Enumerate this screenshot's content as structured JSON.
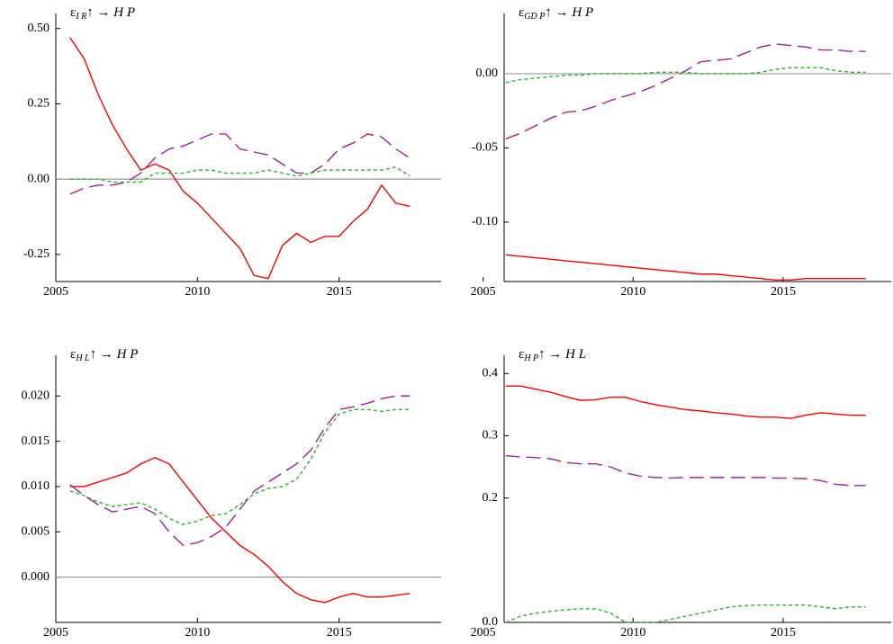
{
  "chart_data": [
    {
      "type": "line",
      "title": {
        "symbol": "ε",
        "subscript": "I R",
        "text": "↑ → H P"
      },
      "x": [
        2005.5,
        2006,
        2006.5,
        2007,
        2007.5,
        2008,
        2008.5,
        2009,
        2009.5,
        2010,
        2010.5,
        2011,
        2011.5,
        2012,
        2012.5,
        2013,
        2013.5,
        2014,
        2014.5,
        2015,
        2015.5,
        2016,
        2016.5,
        2017,
        2017.5
      ],
      "xlim": [
        2005,
        2018.6
      ],
      "xticks": [
        2005,
        2010,
        2015
      ],
      "ylim": [
        -0.34,
        0.52
      ],
      "yticks": [
        {
          "value": 0.5,
          "label": "0.50"
        },
        0.25,
        {
          "value": 0,
          "label": "0.00"
        },
        -0.25
      ],
      "zero_line": true,
      "series": [
        {
          "color": "#ff0000",
          "line_style": "solid",
          "values": [
            0.47,
            0.4,
            0.28,
            0.18,
            0.1,
            0.03,
            0.05,
            0.03,
            -0.04,
            -0.08,
            -0.13,
            -0.18,
            -0.23,
            -0.32,
            -0.33,
            -0.22,
            -0.18,
            -0.21,
            -0.19,
            -0.19,
            -0.14,
            -0.1,
            -0.02,
            -0.08,
            -0.09
          ]
        },
        {
          "color": "#a020a0",
          "line_style": "long-dash",
          "values": [
            -0.05,
            -0.03,
            -0.02,
            -0.02,
            -0.01,
            0.02,
            0.07,
            0.1,
            0.11,
            0.13,
            0.15,
            0.15,
            0.1,
            0.09,
            0.08,
            0.05,
            0.02,
            0.02,
            0.05,
            0.1,
            0.12,
            0.15,
            0.14,
            0.1,
            0.07
          ]
        },
        {
          "color": "#22bb22",
          "line_style": "dash",
          "values": [
            0,
            0,
            0,
            -0.01,
            -0.01,
            -0.01,
            0.02,
            0.02,
            0.02,
            0.03,
            0.03,
            0.02,
            0.02,
            0.02,
            0.03,
            0.02,
            0.01,
            0.02,
            0.03,
            0.03,
            0.03,
            0.03,
            0.03,
            0.04,
            0.01
          ]
        }
      ]
    },
    {
      "type": "line",
      "title": {
        "symbol": "ε",
        "subscript": "GD P",
        "text": "↑ → H P"
      },
      "x": [
        2005.75,
        2006.25,
        2006.75,
        2007.25,
        2007.75,
        2008.25,
        2008.75,
        2009.25,
        2009.75,
        2010.25,
        2010.75,
        2011.25,
        2011.75,
        2012.25,
        2012.75,
        2013.25,
        2013.75,
        2014.25,
        2014.75,
        2015.25,
        2015.75,
        2016.25,
        2016.75,
        2017.25,
        2017.75
      ],
      "xlim": [
        2005.7,
        2018.6
      ],
      "xticks": [
        2005,
        2010,
        2015
      ],
      "ylim": [
        -0.14,
        0.0345
      ],
      "yticks": [
        {
          "value": 0,
          "label": "0.00"
        },
        {
          "value": -0.05,
          "label": "-0.05"
        },
        {
          "value": -0.1,
          "label": "-0.10"
        }
      ],
      "zero_line": true,
      "series": [
        {
          "color": "#ff0000",
          "line_style": "solid",
          "values": [
            -0.122,
            -0.123,
            -0.124,
            -0.125,
            -0.126,
            -0.127,
            -0.128,
            -0.129,
            -0.13,
            -0.131,
            -0.132,
            -0.133,
            -0.134,
            -0.135,
            -0.135,
            -0.136,
            -0.137,
            -0.138,
            -0.139,
            -0.139,
            -0.138,
            -0.138,
            -0.138,
            -0.138,
            -0.138
          ]
        },
        {
          "color": "#a020a0",
          "line_style": "long-dash",
          "values": [
            -0.044,
            -0.04,
            -0.035,
            -0.03,
            -0.026,
            -0.025,
            -0.022,
            -0.018,
            -0.015,
            -0.012,
            -0.008,
            -0.003,
            0.002,
            0.008,
            0.009,
            0.01,
            0.014,
            0.018,
            0.02,
            0.019,
            0.018,
            0.016,
            0.016,
            0.015,
            0.015
          ]
        },
        {
          "color": "#22bb22",
          "line_style": "dash",
          "values": [
            -0.006,
            -0.004,
            -0.003,
            -0.002,
            -0.001,
            -0.001,
            0,
            0,
            0,
            0,
            0.001,
            0.001,
            0.001,
            0,
            0,
            0,
            0,
            0.001,
            0.003,
            0.004,
            0.004,
            0.004,
            0.002,
            0.001,
            0.001
          ]
        }
      ]
    },
    {
      "type": "line",
      "title": {
        "symbol": "ε",
        "subscript": "H L",
        "text": "↑ → H P"
      },
      "x": [
        2005.5,
        2006,
        2006.5,
        2007,
        2007.5,
        2008,
        2008.5,
        2009,
        2009.5,
        2010,
        2010.5,
        2011,
        2011.5,
        2012,
        2012.5,
        2013,
        2013.5,
        2014,
        2014.5,
        2015,
        2015.5,
        2016,
        2016.5,
        2017,
        2017.5
      ],
      "xlim": [
        2005,
        2018.6
      ],
      "xticks": [
        2005,
        2010,
        2015
      ],
      "ylim": [
        -0.005,
        0.0235
      ],
      "yticks": [
        {
          "value": 0.02,
          "label": "0.020"
        },
        0.015,
        {
          "value": 0.01,
          "label": "0.010"
        },
        0.005,
        {
          "value": 0,
          "label": "0.000"
        }
      ],
      "zero_line": true,
      "series": [
        {
          "color": "#ff0000",
          "line_style": "solid",
          "values": [
            0.01,
            0.01,
            0.0105,
            0.011,
            0.0115,
            0.0125,
            0.0132,
            0.0125,
            0.0105,
            0.0085,
            0.0065,
            0.005,
            0.0035,
            0.0025,
            0.0012,
            -0.0005,
            -0.0018,
            -0.0025,
            -0.0028,
            -0.0022,
            -0.0018,
            -0.0022,
            -0.0022,
            -0.002,
            -0.0018
          ]
        },
        {
          "color": "#a020a0",
          "line_style": "long-dash",
          "values": [
            0.0102,
            0.009,
            0.008,
            0.0072,
            0.0075,
            0.0078,
            0.007,
            0.005,
            0.0035,
            0.0038,
            0.0045,
            0.0055,
            0.0075,
            0.0095,
            0.0105,
            0.0115,
            0.0125,
            0.014,
            0.0165,
            0.0185,
            0.0188,
            0.0192,
            0.0197,
            0.02,
            0.02
          ]
        },
        {
          "color": "#22bb22",
          "line_style": "dash",
          "values": [
            0.0095,
            0.009,
            0.0083,
            0.0078,
            0.008,
            0.0082,
            0.0075,
            0.0065,
            0.0058,
            0.0062,
            0.0068,
            0.007,
            0.008,
            0.0092,
            0.0098,
            0.01,
            0.0108,
            0.013,
            0.016,
            0.018,
            0.0185,
            0.0185,
            0.0183,
            0.0185,
            0.0185
          ]
        }
      ]
    },
    {
      "type": "line",
      "title": {
        "symbol": "ε",
        "subscript": "H P",
        "text": "↑ → H L"
      },
      "x": [
        2005.75,
        2006.25,
        2006.75,
        2007.25,
        2007.75,
        2008.25,
        2008.75,
        2009.25,
        2009.75,
        2010.25,
        2010.75,
        2011.25,
        2011.75,
        2012.25,
        2012.75,
        2013.25,
        2013.75,
        2014.25,
        2014.75,
        2015.25,
        2015.75,
        2016.25,
        2016.75,
        2017.25,
        2017.75
      ],
      "xlim": [
        2005.7,
        2018.6
      ],
      "xticks": [
        2005,
        2010,
        2015
      ],
      "ylim": [
        0,
        0.415
      ],
      "yticks": [
        0.4,
        0.3,
        0.2,
        {
          "value": 0,
          "label": "0.0"
        }
      ],
      "zero_line": false,
      "series": [
        {
          "color": "#ff0000",
          "line_style": "solid",
          "values": [
            0.38,
            0.38,
            0.375,
            0.37,
            0.363,
            0.357,
            0.358,
            0.362,
            0.362,
            0.355,
            0.35,
            0.346,
            0.342,
            0.34,
            0.337,
            0.335,
            0.332,
            0.33,
            0.33,
            0.328,
            0.333,
            0.337,
            0.335,
            0.333,
            0.333
          ]
        },
        {
          "color": "#a020a0",
          "line_style": "long-dash",
          "values": [
            0.268,
            0.266,
            0.265,
            0.263,
            0.257,
            0.255,
            0.255,
            0.25,
            0.24,
            0.235,
            0.233,
            0.232,
            0.233,
            0.233,
            0.233,
            0.233,
            0.233,
            0.233,
            0.232,
            0.232,
            0.231,
            0.228,
            0.222,
            0.22,
            0.22
          ]
        },
        {
          "color": "#22bb22",
          "line_style": "dash",
          "values": [
            0.0,
            0.01,
            0.015,
            0.018,
            0.02,
            0.022,
            0.022,
            0.015,
            0.0,
            0.0,
            0.0,
            0.005,
            0.01,
            0.015,
            0.02,
            0.025,
            0.027,
            0.028,
            0.028,
            0.028,
            0.028,
            0.025,
            0.022,
            0.025,
            0.025
          ]
        }
      ]
    }
  ]
}
